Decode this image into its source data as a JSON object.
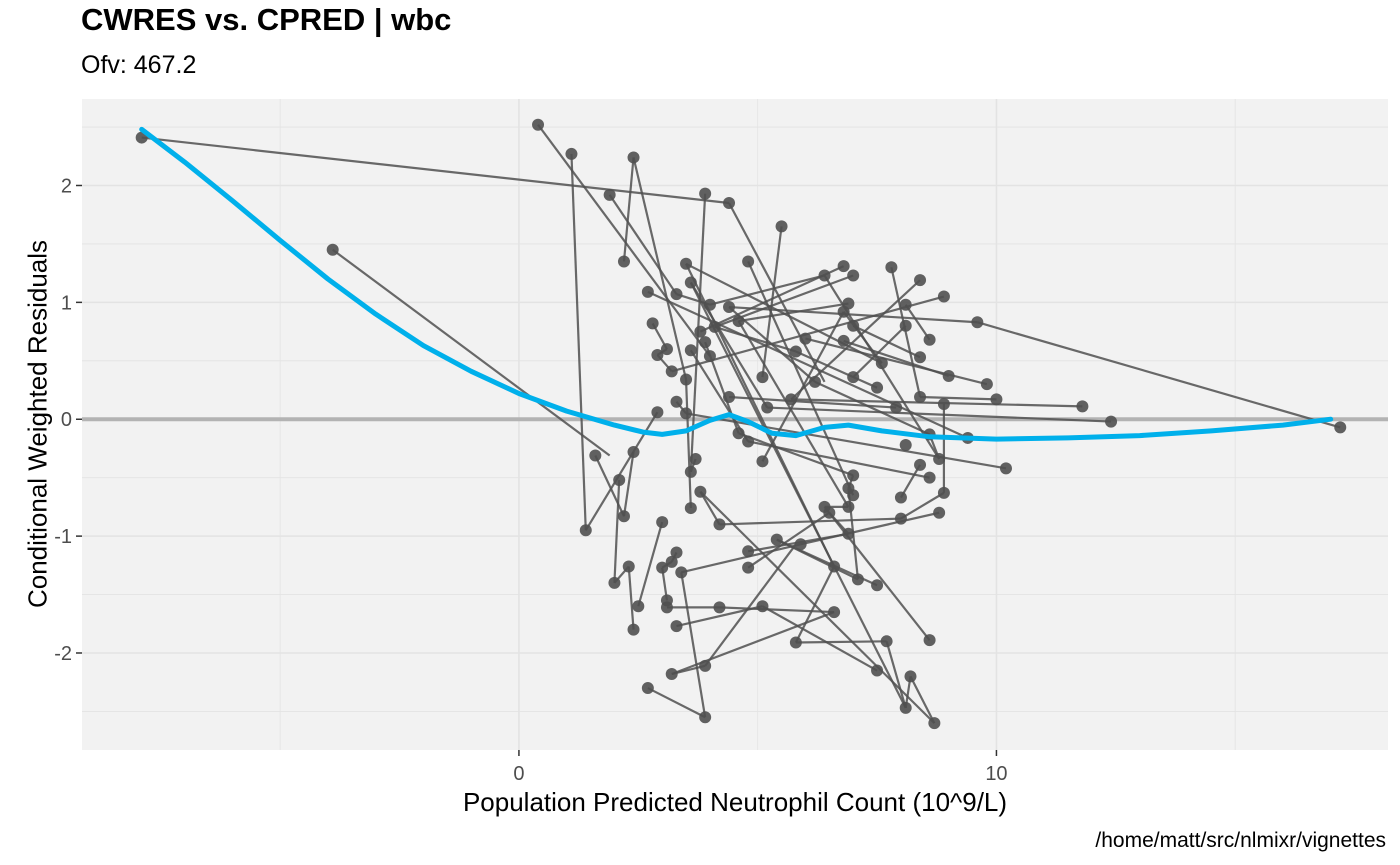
{
  "chart_data": {
    "type": "scatter",
    "title": "CWRES vs. CPRED | wbc",
    "subtitle": "Ofv: 467.2",
    "xlabel": "Population Predicted Neutrophil Count (10^9/L)",
    "ylabel": "Conditional Weighted Residuals",
    "caption": "/home/matt/src/nlmixr/vignettes",
    "xlim": [
      -9.15,
      18.2
    ],
    "ylim": [
      -2.83,
      2.74
    ],
    "x_ticks": [
      0,
      10
    ],
    "x_tick_labels": [
      "0",
      "10"
    ],
    "y_ticks": [
      -2,
      -1,
      0,
      1,
      2
    ],
    "y_tick_labels": [
      "-2",
      "-1",
      "0",
      "1",
      "2"
    ],
    "grid": true,
    "reference_line_y": 0,
    "points": [
      [
        -7.9,
        2.41
      ],
      [
        -3.9,
        1.45
      ],
      [
        0.4,
        2.52
      ],
      [
        1.1,
        2.27
      ],
      [
        1.9,
        1.92
      ],
      [
        2.4,
        2.24
      ],
      [
        2.2,
        1.35
      ],
      [
        2.7,
        1.09
      ],
      [
        2.8,
        0.82
      ],
      [
        3.3,
        1.07
      ],
      [
        3.5,
        1.33
      ],
      [
        3.6,
        1.17
      ],
      [
        3.9,
        1.93
      ],
      [
        4.4,
        1.85
      ],
      [
        4.8,
        1.35
      ],
      [
        5.5,
        1.65
      ],
      [
        6.4,
        1.23
      ],
      [
        6.8,
        1.31
      ],
      [
        7.0,
        1.23
      ],
      [
        7.8,
        1.3
      ],
      [
        8.4,
        1.19
      ],
      [
        8.9,
        1.05
      ],
      [
        9.6,
        0.83
      ],
      [
        8.1,
        0.98
      ],
      [
        8.1,
        0.8
      ],
      [
        8.6,
        0.68
      ],
      [
        8.4,
        0.53
      ],
      [
        7.6,
        0.48
      ],
      [
        6.9,
        0.99
      ],
      [
        6.8,
        0.92
      ],
      [
        7.0,
        0.8
      ],
      [
        6.8,
        0.67
      ],
      [
        6.0,
        0.69
      ],
      [
        5.8,
        0.58
      ],
      [
        5.1,
        0.36
      ],
      [
        4.4,
        0.96
      ],
      [
        4.0,
        0.98
      ],
      [
        4.6,
        0.84
      ],
      [
        4.1,
        0.79
      ],
      [
        3.8,
        0.75
      ],
      [
        3.6,
        0.59
      ],
      [
        3.9,
        0.66
      ],
      [
        4.0,
        0.54
      ],
      [
        3.1,
        0.6
      ],
      [
        2.9,
        0.55
      ],
      [
        3.2,
        0.41
      ],
      [
        3.5,
        0.34
      ],
      [
        6.2,
        0.32
      ],
      [
        7.0,
        0.36
      ],
      [
        7.5,
        0.27
      ],
      [
        9.0,
        0.37
      ],
      [
        9.8,
        0.3
      ],
      [
        10.0,
        0.17
      ],
      [
        8.9,
        0.13
      ],
      [
        8.4,
        0.19
      ],
      [
        7.9,
        0.1
      ],
      [
        5.7,
        0.17
      ],
      [
        5.2,
        0.1
      ],
      [
        4.4,
        0.19
      ],
      [
        3.3,
        0.15
      ],
      [
        2.9,
        0.06
      ],
      [
        3.5,
        0.05
      ],
      [
        11.8,
        0.11
      ],
      [
        12.4,
        -0.02
      ],
      [
        17.2,
        -0.07
      ],
      [
        4.6,
        -0.12
      ],
      [
        4.8,
        -0.19
      ],
      [
        5.1,
        -0.36
      ],
      [
        8.6,
        -0.13
      ],
      [
        8.8,
        -0.34
      ],
      [
        9.4,
        -0.16
      ],
      [
        10.2,
        -0.42
      ],
      [
        8.1,
        -0.22
      ],
      [
        8.4,
        -0.39
      ],
      [
        8.6,
        -0.5
      ],
      [
        8.9,
        -0.63
      ],
      [
        8.0,
        -0.67
      ],
      [
        7.0,
        -0.48
      ],
      [
        6.9,
        -0.59
      ],
      [
        7.0,
        -0.65
      ],
      [
        6.9,
        -0.75
      ],
      [
        6.5,
        -0.8
      ],
      [
        6.4,
        -0.75
      ],
      [
        6.9,
        -0.98
      ],
      [
        3.7,
        -0.34
      ],
      [
        3.6,
        -0.45
      ],
      [
        3.8,
        -0.62
      ],
      [
        3.6,
        -0.76
      ],
      [
        2.4,
        -0.28
      ],
      [
        2.1,
        -0.52
      ],
      [
        2.2,
        -0.83
      ],
      [
        1.6,
        -0.31
      ],
      [
        1.4,
        -0.95
      ],
      [
        4.2,
        -0.9
      ],
      [
        4.8,
        -1.13
      ],
      [
        4.8,
        -1.27
      ],
      [
        5.4,
        -1.03
      ],
      [
        5.9,
        -1.07
      ],
      [
        6.6,
        -1.26
      ],
      [
        7.1,
        -1.37
      ],
      [
        7.5,
        -1.42
      ],
      [
        8.0,
        -0.85
      ],
      [
        8.8,
        -0.8
      ],
      [
        3.0,
        -0.88
      ],
      [
        3.3,
        -1.14
      ],
      [
        3.2,
        -1.22
      ],
      [
        3.0,
        -1.27
      ],
      [
        3.4,
        -1.31
      ],
      [
        2.3,
        -1.26
      ],
      [
        2.0,
        -1.4
      ],
      [
        2.5,
        -1.6
      ],
      [
        2.4,
        -1.8
      ],
      [
        3.1,
        -1.55
      ],
      [
        3.1,
        -1.61
      ],
      [
        3.3,
        -1.77
      ],
      [
        4.2,
        -1.61
      ],
      [
        5.1,
        -1.6
      ],
      [
        5.8,
        -1.91
      ],
      [
        6.6,
        -1.65
      ],
      [
        7.5,
        -2.15
      ],
      [
        7.7,
        -1.9
      ],
      [
        8.6,
        -1.89
      ],
      [
        3.2,
        -2.18
      ],
      [
        3.9,
        -2.11
      ],
      [
        2.7,
        -2.3
      ],
      [
        3.9,
        -2.55
      ],
      [
        8.1,
        -2.47
      ],
      [
        8.2,
        -2.2
      ],
      [
        8.7,
        -2.6
      ]
    ],
    "segments": [
      [
        -7.9,
        2.41,
        4.4,
        1.85
      ],
      [
        -3.9,
        1.45,
        1.9,
        -0.31
      ],
      [
        0.4,
        2.52,
        4.0,
        0.54
      ],
      [
        1.1,
        2.27,
        1.4,
        -0.95
      ],
      [
        1.9,
        1.92,
        3.3,
        1.07
      ],
      [
        2.4,
        2.24,
        2.2,
        1.35
      ],
      [
        2.4,
        2.24,
        3.5,
        0.34
      ],
      [
        3.9,
        1.93,
        3.6,
        -0.45
      ],
      [
        4.4,
        1.85,
        6.4,
        0.32
      ],
      [
        4.8,
        1.35,
        7.0,
        -0.65
      ],
      [
        5.5,
        1.65,
        5.1,
        0.36
      ],
      [
        2.7,
        1.09,
        9.4,
        -0.16
      ],
      [
        2.8,
        0.82,
        3.1,
        0.6
      ],
      [
        3.3,
        1.07,
        4.0,
        0.98
      ],
      [
        3.5,
        1.33,
        7.6,
        0.48
      ],
      [
        3.6,
        1.17,
        5.2,
        0.1
      ],
      [
        6.4,
        1.23,
        8.8,
        -0.34
      ],
      [
        6.8,
        1.31,
        3.8,
        0.75
      ],
      [
        7.0,
        1.23,
        4.1,
        0.79
      ],
      [
        7.8,
        1.3,
        8.4,
        0.19
      ],
      [
        8.4,
        1.19,
        5.7,
        0.17
      ],
      [
        8.9,
        1.05,
        3.2,
        0.41
      ],
      [
        9.6,
        0.83,
        4.4,
        0.96
      ],
      [
        8.1,
        0.98,
        8.6,
        0.68
      ],
      [
        8.1,
        0.8,
        7.0,
        0.36
      ],
      [
        8.4,
        0.53,
        7.0,
        0.8
      ],
      [
        7.6,
        0.48,
        6.8,
        0.92
      ],
      [
        6.9,
        0.99,
        4.6,
        0.84
      ],
      [
        6.8,
        0.67,
        9.0,
        0.37
      ],
      [
        6.0,
        0.69,
        9.8,
        0.3
      ],
      [
        5.8,
        0.58,
        7.5,
        0.27
      ],
      [
        4.4,
        0.96,
        6.2,
        0.32
      ],
      [
        3.6,
        0.59,
        4.8,
        -0.19
      ],
      [
        3.9,
        0.66,
        4.6,
        -0.12
      ],
      [
        3.1,
        0.6,
        2.9,
        0.55
      ],
      [
        2.9,
        0.55,
        3.2,
        0.41
      ],
      [
        3.3,
        0.15,
        3.5,
        0.05
      ],
      [
        4.4,
        0.19,
        7.9,
        0.1
      ],
      [
        10.0,
        0.17,
        8.4,
        0.19
      ],
      [
        8.9,
        0.13,
        8.9,
        -0.63
      ],
      [
        6.2,
        0.32,
        8.6,
        -0.13
      ],
      [
        9.6,
        0.83,
        17.2,
        -0.07
      ],
      [
        11.8,
        0.11,
        5.7,
        0.17
      ],
      [
        12.4,
        -0.02,
        5.2,
        0.1
      ],
      [
        3.5,
        0.05,
        10.2,
        -0.42
      ],
      [
        4.6,
        -0.12,
        7.0,
        -0.48
      ],
      [
        4.8,
        -0.19,
        8.6,
        -0.5
      ],
      [
        5.1,
        -0.36,
        6.8,
        0.92
      ],
      [
        8.6,
        -0.13,
        8.8,
        -0.34
      ],
      [
        8.4,
        -0.39,
        8.0,
        -0.67
      ],
      [
        7.0,
        -0.48,
        6.9,
        -0.59
      ],
      [
        6.9,
        -0.75,
        6.4,
        -0.75
      ],
      [
        6.5,
        -0.8,
        6.9,
        -0.98
      ],
      [
        3.7,
        -0.34,
        3.6,
        -0.45
      ],
      [
        3.8,
        -0.62,
        4.2,
        -0.9
      ],
      [
        3.6,
        -0.76,
        3.5,
        0.34
      ],
      [
        2.4,
        -0.28,
        2.2,
        -0.83
      ],
      [
        2.1,
        -0.52,
        2.0,
        -1.4
      ],
      [
        1.6,
        -0.31,
        2.2,
        -0.83
      ],
      [
        1.4,
        -0.95,
        2.9,
        0.06
      ],
      [
        4.2,
        -0.9,
        8.0,
        -0.85
      ],
      [
        4.8,
        -1.13,
        6.9,
        -0.98
      ],
      [
        4.8,
        -1.27,
        6.5,
        -0.8
      ],
      [
        5.4,
        -1.03,
        7.1,
        -1.37
      ],
      [
        5.9,
        -1.07,
        3.4,
        -1.31
      ],
      [
        6.6,
        -1.26,
        5.8,
        -1.91
      ],
      [
        7.1,
        -1.37,
        6.9,
        -0.59
      ],
      [
        7.5,
        -1.42,
        5.4,
        -1.03
      ],
      [
        8.0,
        -0.85,
        8.9,
        -0.63
      ],
      [
        8.8,
        -0.8,
        5.9,
        -1.07
      ],
      [
        3.0,
        -0.88,
        2.5,
        -1.6
      ],
      [
        3.3,
        -1.14,
        3.2,
        -1.22
      ],
      [
        3.2,
        -1.22,
        3.0,
        -1.27
      ],
      [
        3.0,
        -1.27,
        3.1,
        -1.55
      ],
      [
        3.4,
        -1.31,
        3.9,
        -2.55
      ],
      [
        2.3,
        -1.26,
        2.4,
        -1.8
      ],
      [
        2.0,
        -1.4,
        2.3,
        -1.26
      ],
      [
        3.1,
        -1.61,
        4.2,
        -1.61
      ],
      [
        3.3,
        -1.77,
        5.1,
        -1.6
      ],
      [
        4.2,
        -1.61,
        6.6,
        -1.65
      ],
      [
        5.1,
        -1.6,
        7.5,
        -2.15
      ],
      [
        5.8,
        -1.91,
        7.7,
        -1.9
      ],
      [
        6.6,
        -1.65,
        3.2,
        -2.18
      ],
      [
        7.7,
        -1.9,
        8.1,
        -2.47
      ],
      [
        8.6,
        -1.89,
        6.4,
        -0.75
      ],
      [
        3.2,
        -2.18,
        3.9,
        -2.11
      ],
      [
        2.7,
        -2.3,
        3.9,
        -2.55
      ],
      [
        3.9,
        -2.11,
        5.8,
        -1.07
      ],
      [
        8.1,
        -2.47,
        8.2,
        -2.2
      ],
      [
        8.2,
        -2.2,
        8.7,
        -2.6
      ],
      [
        3.8,
        -0.62,
        8.7,
        -2.6
      ],
      [
        4.6,
        0.84,
        6.9,
        -0.75
      ],
      [
        3.5,
        1.33,
        6.6,
        -1.26
      ],
      [
        3.6,
        1.17,
        8.1,
        -2.47
      ],
      [
        4.0,
        0.98,
        6.4,
        1.23
      ],
      [
        4.1,
        0.79,
        5.8,
        0.58
      ]
    ],
    "smooth": [
      [
        -7.9,
        2.48
      ],
      [
        -7.0,
        2.2
      ],
      [
        -6.0,
        1.87
      ],
      [
        -5.0,
        1.53
      ],
      [
        -4.0,
        1.2
      ],
      [
        -3.0,
        0.9
      ],
      [
        -2.0,
        0.63
      ],
      [
        -1.0,
        0.41
      ],
      [
        0.0,
        0.22
      ],
      [
        1.0,
        0.07
      ],
      [
        2.0,
        -0.05
      ],
      [
        2.6,
        -0.11
      ],
      [
        3.0,
        -0.13
      ],
      [
        3.5,
        -0.1
      ],
      [
        4.0,
        -0.01
      ],
      [
        4.4,
        0.04
      ],
      [
        4.8,
        -0.02
      ],
      [
        5.3,
        -0.12
      ],
      [
        5.8,
        -0.14
      ],
      [
        6.4,
        -0.07
      ],
      [
        6.9,
        -0.05
      ],
      [
        7.6,
        -0.1
      ],
      [
        8.6,
        -0.15
      ],
      [
        10.0,
        -0.17
      ],
      [
        11.5,
        -0.16
      ],
      [
        13.0,
        -0.14
      ],
      [
        14.5,
        -0.1
      ],
      [
        16.0,
        -0.05
      ],
      [
        17.0,
        0.0
      ]
    ],
    "colors": {
      "panel": "#f2f2f2",
      "grid": "#e3e3e3",
      "reference_line": "#b3b3b3",
      "points": "#505050",
      "segments": "#505050",
      "smooth": "#00b0eb"
    }
  }
}
